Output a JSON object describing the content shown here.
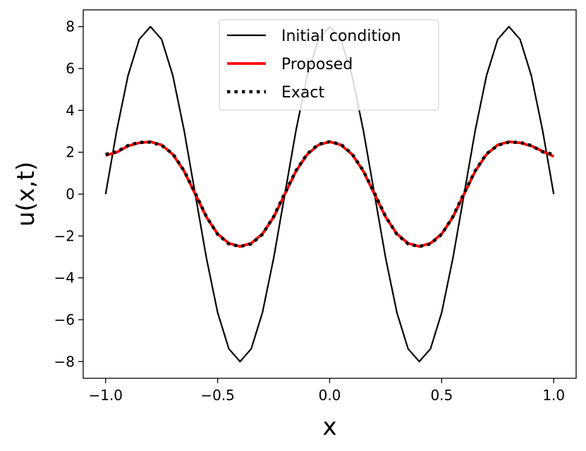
{
  "chart_data": {
    "type": "line",
    "xlabel": "x",
    "ylabel": "u(x,t)",
    "xlim": [
      -1.1,
      1.1
    ],
    "ylim": [
      -8.8,
      8.8
    ],
    "grid": false,
    "legend_position": "top-center",
    "x_ticks": [
      -1.0,
      -0.5,
      0.0,
      0.5,
      1.0
    ],
    "x_tick_labels": [
      "−1.0",
      "−0.5",
      "0.0",
      "0.5",
      "1.0"
    ],
    "y_ticks": [
      -8,
      -6,
      -4,
      -2,
      0,
      2,
      4,
      6,
      8
    ],
    "y_tick_labels": [
      "−8",
      "−6",
      "−4",
      "−2",
      "0",
      "2",
      "4",
      "6",
      "8"
    ],
    "series": [
      {
        "name": "Initial condition",
        "color": "#000000",
        "style": "solid",
        "x": [
          -1.0,
          -0.95,
          -0.9,
          -0.85,
          -0.8,
          -0.75,
          -0.7,
          -0.65,
          -0.6,
          -0.55,
          -0.5,
          -0.45,
          -0.4,
          -0.35,
          -0.3,
          -0.25,
          -0.2,
          -0.15,
          -0.1,
          -0.05,
          0.0,
          0.05,
          0.1,
          0.15,
          0.2,
          0.25,
          0.3,
          0.35,
          0.4,
          0.45,
          0.5,
          0.55,
          0.6,
          0.65,
          0.7,
          0.75,
          0.8,
          0.85,
          0.9,
          0.95,
          1.0
        ],
        "y": [
          0.0,
          3.06,
          5.66,
          7.39,
          8.0,
          7.39,
          5.66,
          3.06,
          0.0,
          -3.06,
          -5.66,
          -7.39,
          -8.0,
          -7.39,
          -5.66,
          -3.06,
          0.0,
          3.06,
          5.66,
          7.39,
          8.0,
          7.39,
          5.66,
          3.06,
          0.0,
          -3.06,
          -5.66,
          -7.39,
          -8.0,
          -7.39,
          -5.66,
          -3.06,
          0.0,
          3.06,
          5.66,
          7.39,
          8.0,
          7.39,
          5.66,
          3.06,
          0.0
        ]
      },
      {
        "name": "Proposed",
        "color": "#ff0000",
        "style": "solid",
        "x": [
          -1.0,
          -0.95,
          -0.9,
          -0.85,
          -0.8,
          -0.75,
          -0.7,
          -0.65,
          -0.6,
          -0.55,
          -0.5,
          -0.45,
          -0.4,
          -0.35,
          -0.3,
          -0.25,
          -0.2,
          -0.15,
          -0.1,
          -0.05,
          0.0,
          0.05,
          0.1,
          0.15,
          0.2,
          0.25,
          0.3,
          0.35,
          0.4,
          0.45,
          0.5,
          0.55,
          0.6,
          0.65,
          0.7,
          0.75,
          0.8,
          0.85,
          0.9,
          0.95,
          1.0
        ],
        "y": [
          1.85,
          2.0,
          2.3,
          2.45,
          2.5,
          2.35,
          1.9,
          1.1,
          0.0,
          -1.1,
          -1.9,
          -2.35,
          -2.5,
          -2.35,
          -1.9,
          -1.1,
          0.0,
          1.1,
          1.9,
          2.35,
          2.5,
          2.35,
          1.9,
          1.1,
          0.0,
          -1.1,
          -1.9,
          -2.35,
          -2.5,
          -2.35,
          -1.9,
          -1.1,
          0.0,
          1.1,
          1.9,
          2.35,
          2.5,
          2.45,
          2.3,
          2.05,
          1.8
        ]
      },
      {
        "name": "Exact",
        "color": "#000000",
        "style": "dotted",
        "x": [
          -1.0,
          -0.95,
          -0.9,
          -0.85,
          -0.8,
          -0.75,
          -0.7,
          -0.65,
          -0.6,
          -0.55,
          -0.5,
          -0.45,
          -0.4,
          -0.35,
          -0.3,
          -0.25,
          -0.2,
          -0.15,
          -0.1,
          -0.05,
          0.0,
          0.05,
          0.1,
          0.15,
          0.2,
          0.25,
          0.3,
          0.35,
          0.4,
          0.45,
          0.5,
          0.55,
          0.6,
          0.65,
          0.7,
          0.75,
          0.8,
          0.85,
          0.9,
          0.95,
          1.0
        ],
        "y": [
          1.9,
          2.02,
          2.32,
          2.47,
          2.48,
          2.33,
          1.92,
          1.12,
          0.05,
          -1.08,
          -1.92,
          -2.38,
          -2.5,
          -2.38,
          -1.92,
          -1.08,
          0.05,
          1.12,
          1.92,
          2.38,
          2.5,
          2.38,
          1.92,
          1.12,
          0.05,
          -1.08,
          -1.92,
          -2.38,
          -2.5,
          -2.38,
          -1.92,
          -1.08,
          0.05,
          1.12,
          1.92,
          2.33,
          2.48,
          2.47,
          2.32,
          2.02,
          1.9
        ]
      }
    ]
  }
}
